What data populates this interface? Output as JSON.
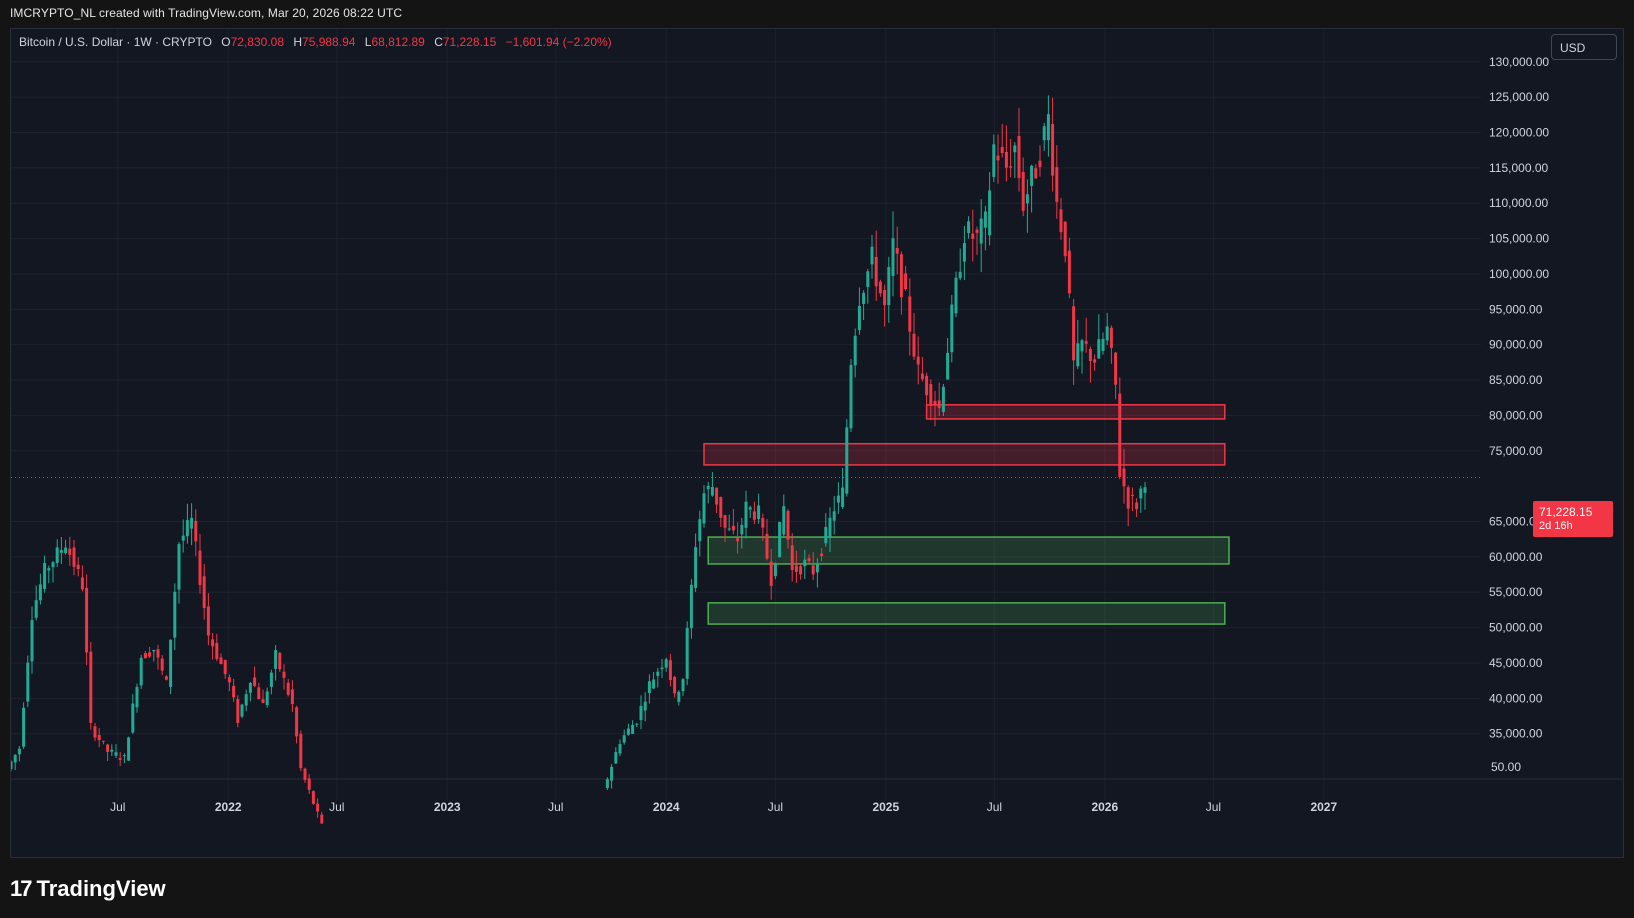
{
  "header": {
    "attribution": "IMCRYPTO_NL created with TradingView.com, Mar 20, 2026 08:22 UTC"
  },
  "legend": {
    "symbol": "Bitcoin / U.S. Dollar · 1W · CRYPTO",
    "open_label": "O",
    "open": "72,830.08",
    "high_label": "H",
    "high": "75,988.94",
    "low_label": "L",
    "low": "68,812.89",
    "close_label": "C",
    "close": "71,228.15",
    "change": "−1,601.94 (−2.20%)"
  },
  "currency_button": "USD",
  "price_tag": {
    "price": "71,228.15",
    "countdown": "2d 16h"
  },
  "branding": {
    "name": "TradingView"
  },
  "colors": {
    "up": "#22ab94",
    "down": "#f23645",
    "background": "#131722",
    "grid": "#1e222d",
    "support_zone": "#4caf50",
    "resistance_zone": "#f23645"
  },
  "chart_data": {
    "type": "candlestick",
    "title": "Bitcoin / U.S. Dollar · 1W · CRYPTO",
    "timeframe": "1W",
    "y_axis_labels": [
      "130,000.00",
      "125,000.00",
      "120,000.00",
      "115,000.00",
      "110,000.00",
      "105,000.00",
      "100,000.00",
      "95,000.00",
      "90,000.00",
      "85,000.00",
      "80,000.00",
      "75,000.00",
      "65,000.00",
      "60,000.00",
      "55,000.00",
      "50,000.00",
      "45,000.00",
      "40,000.00",
      "35,000.00"
    ],
    "y_axis_bottom_label": "50.00",
    "x_axis_labels": [
      {
        "label": "Jul",
        "date": "2021-07"
      },
      {
        "label": "2022",
        "date": "2022-01"
      },
      {
        "label": "Jul",
        "date": "2022-07"
      },
      {
        "label": "2023",
        "date": "2023-01"
      },
      {
        "label": "Jul",
        "date": "2023-07"
      },
      {
        "label": "2024",
        "date": "2024-01"
      },
      {
        "label": "Jul",
        "date": "2024-07"
      },
      {
        "label": "2025",
        "date": "2025-01"
      },
      {
        "label": "Jul",
        "date": "2025-07"
      },
      {
        "label": "2026",
        "date": "2026-01"
      },
      {
        "label": "Jul",
        "date": "2026-07"
      },
      {
        "label": "2027",
        "date": "2027-01"
      }
    ],
    "current_price": 71228.15,
    "ylim": [
      31000,
      133500
    ],
    "xlim": [
      "2021-01-04",
      "2027-09-20"
    ],
    "price_path": [
      [
        "2021-01-04",
        30000
      ],
      [
        "2021-01-25",
        33000
      ],
      [
        "2021-02-15",
        52000
      ],
      [
        "2021-03-08",
        58000
      ],
      [
        "2021-04-12",
        62000
      ],
      [
        "2021-05-10",
        56000
      ],
      [
        "2021-05-24",
        36000
      ],
      [
        "2021-06-21",
        32500
      ],
      [
        "2021-07-19",
        31500
      ],
      [
        "2021-08-16",
        46000
      ],
      [
        "2021-09-06",
        47000
      ],
      [
        "2021-09-27",
        42000
      ],
      [
        "2021-10-18",
        62000
      ],
      [
        "2021-11-08",
        65000
      ],
      [
        "2021-12-06",
        49000
      ],
      [
        "2022-01-10",
        42000
      ],
      [
        "2022-01-24",
        37000
      ],
      [
        "2022-02-14",
        43000
      ],
      [
        "2022-03-07",
        39000
      ],
      [
        "2022-03-28",
        46000
      ],
      [
        "2022-04-25",
        39000
      ],
      [
        "2022-05-09",
        30000
      ],
      [
        "2022-06-13",
        22000
      ],
      [
        "2023-09-25",
        27000
      ],
      [
        "2023-10-23",
        34000
      ],
      [
        "2023-11-20",
        37000
      ],
      [
        "2023-12-11",
        42000
      ],
      [
        "2024-01-08",
        46000
      ],
      [
        "2024-01-22",
        40000
      ],
      [
        "2024-02-05",
        43000
      ],
      [
        "2024-02-26",
        62000
      ],
      [
        "2024-03-11",
        69000
      ],
      [
        "2024-03-25",
        70000
      ],
      [
        "2024-04-15",
        64000
      ],
      [
        "2024-05-06",
        62500
      ],
      [
        "2024-05-20",
        67000
      ],
      [
        "2024-06-10",
        66000
      ],
      [
        "2024-07-01",
        57000
      ],
      [
        "2024-07-22",
        67000
      ],
      [
        "2024-08-05",
        58000
      ],
      [
        "2024-08-26",
        59000
      ],
      [
        "2024-09-09",
        58000
      ],
      [
        "2024-09-30",
        63000
      ],
      [
        "2024-10-14",
        67000
      ],
      [
        "2024-10-28",
        69000
      ],
      [
        "2024-11-11",
        88000
      ],
      [
        "2024-11-25",
        97000
      ],
      [
        "2024-12-16",
        102000
      ],
      [
        "2025-01-06",
        95000
      ],
      [
        "2025-01-20",
        104000
      ],
      [
        "2025-02-10",
        96000
      ],
      [
        "2025-03-03",
        86000
      ],
      [
        "2025-03-17",
        84000
      ],
      [
        "2025-04-07",
        81000
      ],
      [
        "2025-04-28",
        94000
      ],
      [
        "2025-05-19",
        106000
      ],
      [
        "2025-06-09",
        105000
      ],
      [
        "2025-06-23",
        107000
      ],
      [
        "2025-07-07",
        118000
      ],
      [
        "2025-07-28",
        115000
      ],
      [
        "2025-08-11",
        118000
      ],
      [
        "2025-08-25",
        110000
      ],
      [
        "2025-09-15",
        115000
      ],
      [
        "2025-10-06",
        122000
      ],
      [
        "2025-10-20",
        110000
      ],
      [
        "2025-11-03",
        104000
      ],
      [
        "2025-11-17",
        87000
      ],
      [
        "2025-12-01",
        90000
      ],
      [
        "2025-12-22",
        88000
      ],
      [
        "2026-01-12",
        92000
      ],
      [
        "2026-01-26",
        84000
      ],
      [
        "2026-02-02",
        72000
      ],
      [
        "2026-02-16",
        68000
      ],
      [
        "2026-03-02",
        67500
      ],
      [
        "2026-03-16",
        71228
      ]
    ],
    "zones": [
      {
        "kind": "resistance",
        "top": 81500,
        "bottom": 79500,
        "from": "2025-03-10",
        "to": "2026-07-20"
      },
      {
        "kind": "resistance",
        "top": 76000,
        "bottom": 73000,
        "from": "2024-03-04",
        "to": "2026-07-20"
      },
      {
        "kind": "support",
        "top": 62800,
        "bottom": 59000,
        "from": "2024-03-11",
        "to": "2026-07-27"
      },
      {
        "kind": "support",
        "top": 53500,
        "bottom": 50500,
        "from": "2024-03-11",
        "to": "2026-07-20"
      }
    ]
  }
}
